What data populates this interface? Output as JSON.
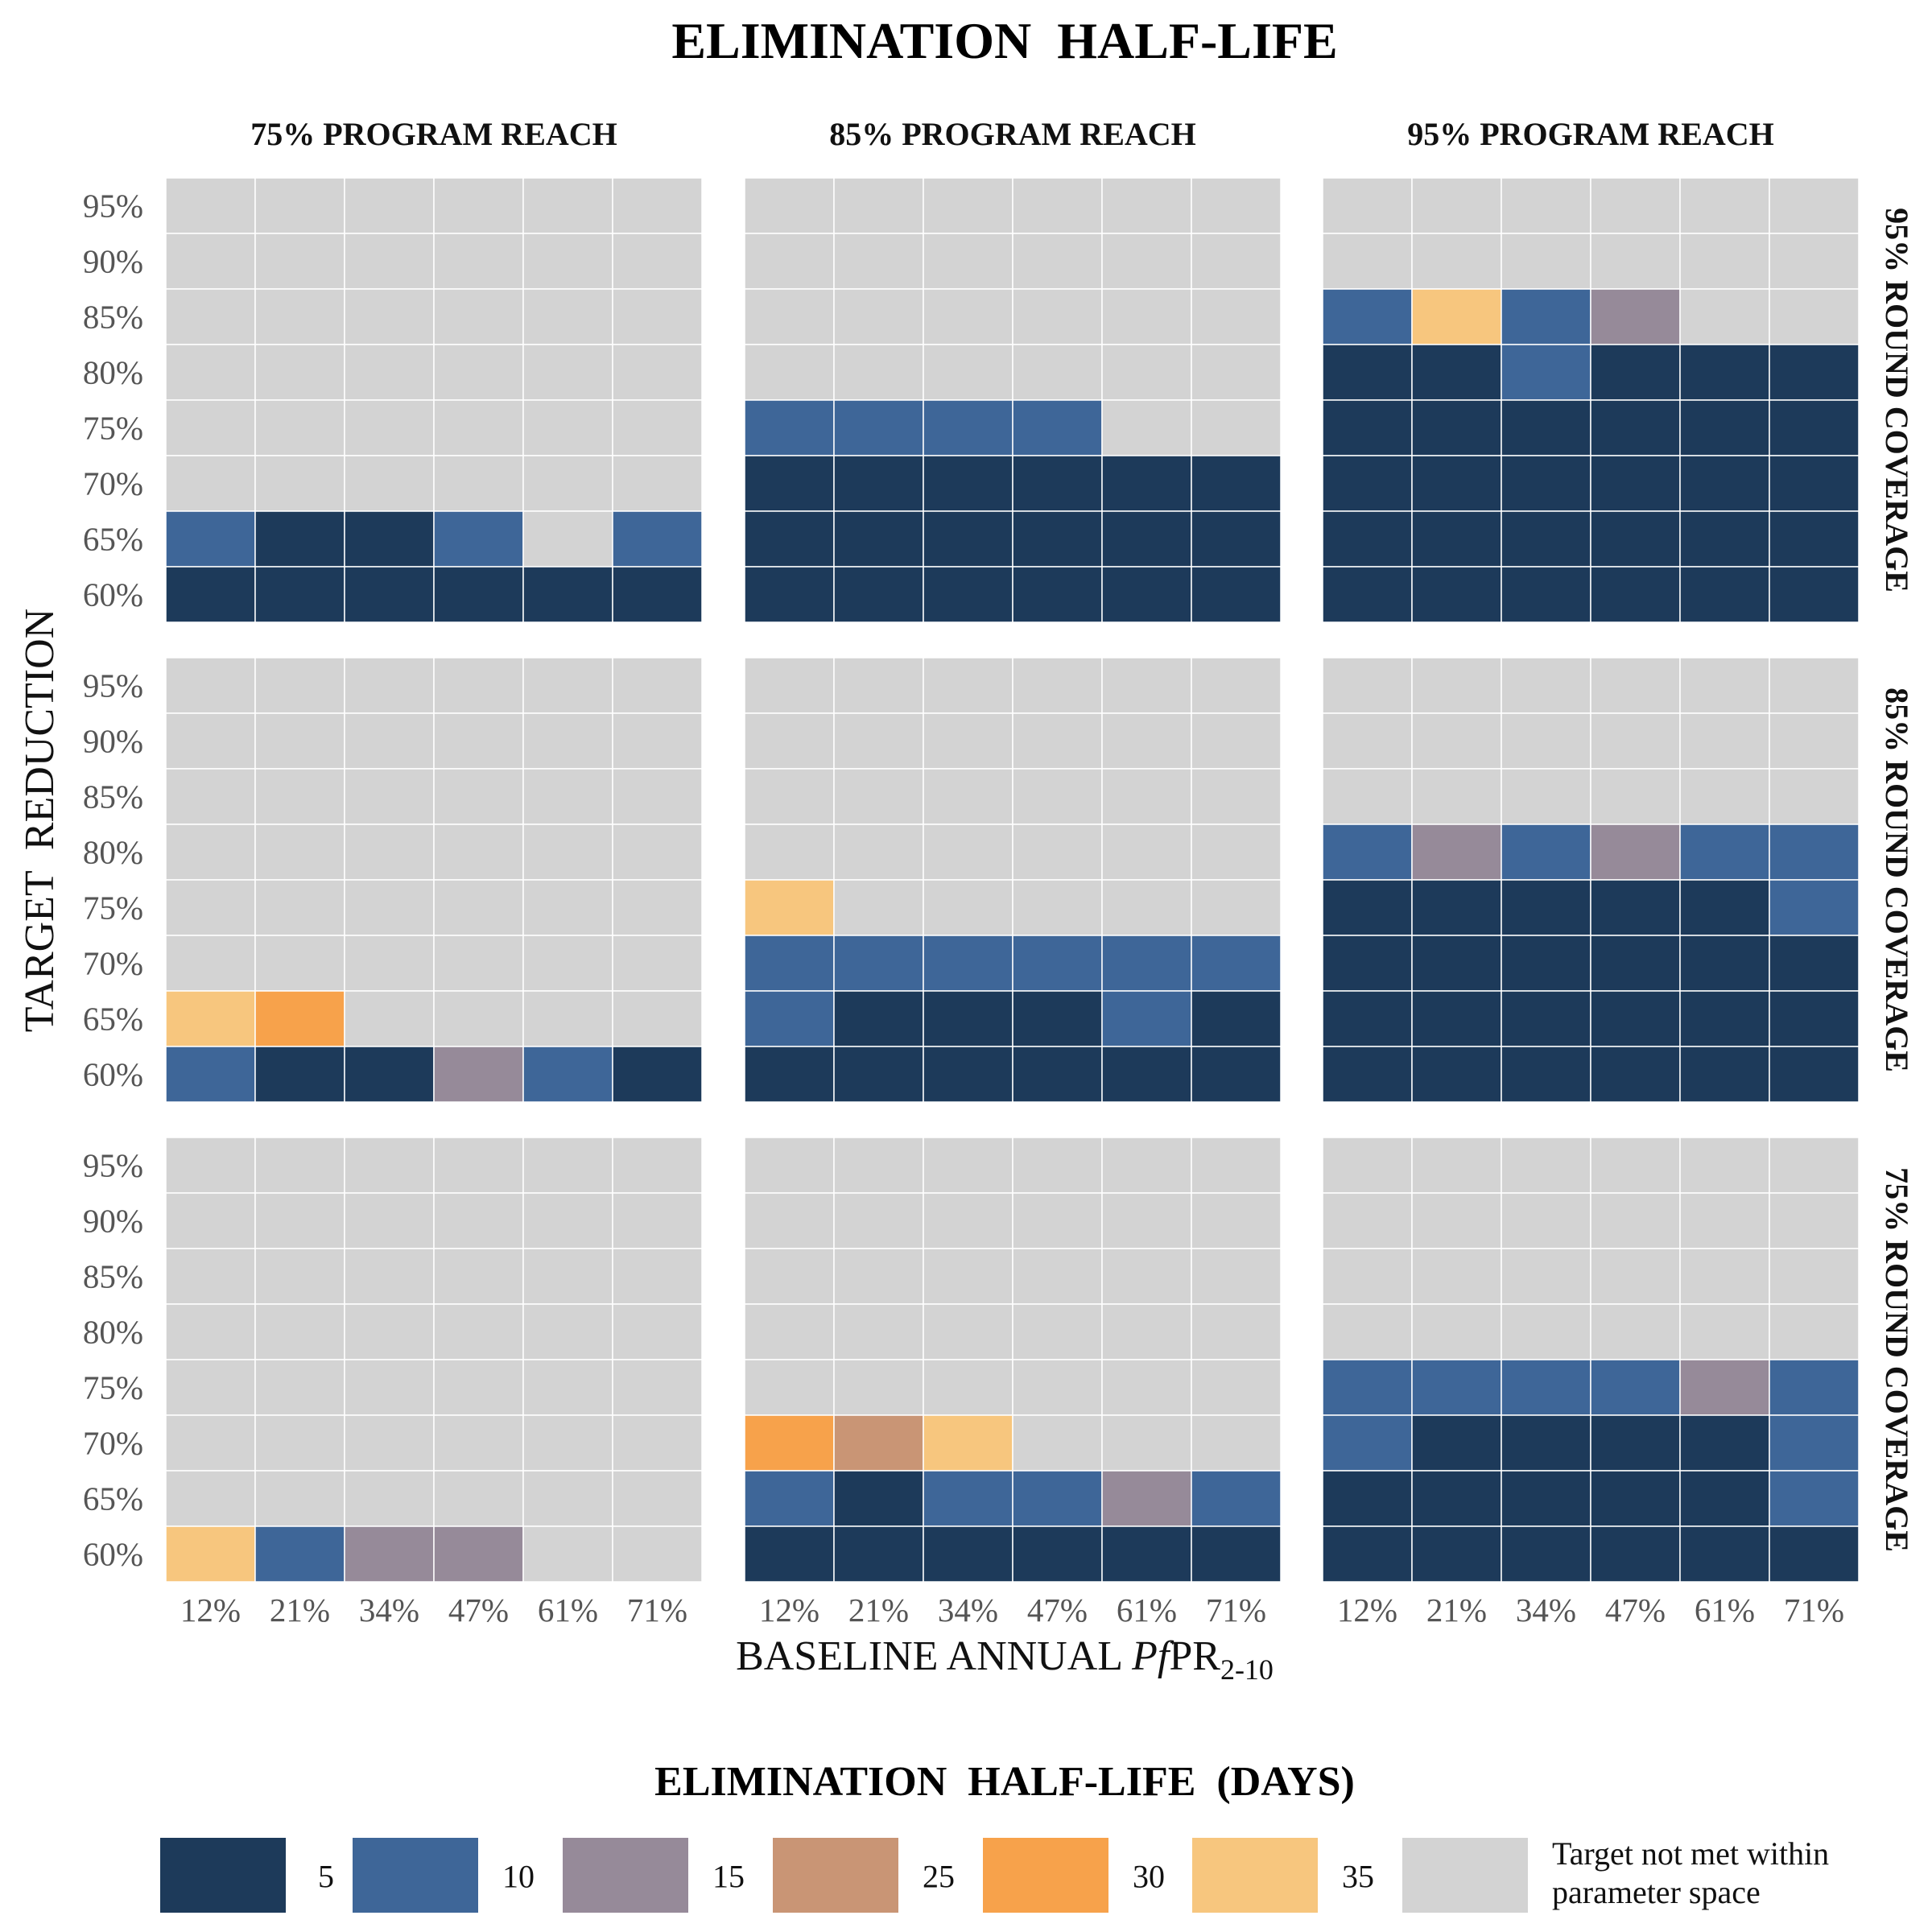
{
  "chart_data": {
    "type": "heatmap",
    "title": "ELIMINATION  HALF-LIFE",
    "xlabel": "BASELINE ANNUAL PfPR2-10",
    "xlabel_parts": {
      "pre": "BASELINE ANNUAL ",
      "italic": "Pf",
      "mid": "PR",
      "sub": "2-10"
    },
    "ylabel": "TARGET  REDUCTION",
    "x_categories": [
      "12%",
      "21%",
      "34%",
      "47%",
      "61%",
      "71%"
    ],
    "y_categories": [
      "95%",
      "90%",
      "85%",
      "80%",
      "75%",
      "70%",
      "65%",
      "60%"
    ],
    "column_facets": [
      "75% PROGRAM REACH",
      "85% PROGRAM REACH",
      "95% PROGRAM REACH"
    ],
    "row_facets": [
      "95% ROUND COVERAGE",
      "85% ROUND COVERAGE",
      "75% ROUND COVERAGE"
    ],
    "legend": {
      "title": "ELIMINATION  HALF-LIFE  (DAYS)",
      "entries": [
        {
          "key": "5",
          "label": "5",
          "color": "#1d3a5a"
        },
        {
          "key": "10",
          "label": "10",
          "color": "#3e6698"
        },
        {
          "key": "15",
          "label": "15",
          "color": "#968a99"
        },
        {
          "key": "25",
          "label": "25",
          "color": "#c99575"
        },
        {
          "key": "30",
          "label": "30",
          "color": "#f7a24b"
        },
        {
          "key": "35",
          "label": "35",
          "color": "#f7c67e"
        },
        {
          "key": "na",
          "label": "Target not met within parameter space",
          "color": "#d3d3d3"
        }
      ],
      "na_label_lines": [
        "Target not met within",
        "parameter space"
      ]
    },
    "grid_lines": true,
    "note": "Each panel matrix: rows follow y_categories (95% top to 60% bottom), columns follow x_categories; null = target not met within parameter space.",
    "panels": [
      {
        "row_facet": "95% ROUND COVERAGE",
        "column_facet": "75% PROGRAM REACH",
        "values": [
          [
            null,
            null,
            null,
            null,
            null,
            null
          ],
          [
            null,
            null,
            null,
            null,
            null,
            null
          ],
          [
            null,
            null,
            null,
            null,
            null,
            null
          ],
          [
            null,
            null,
            null,
            null,
            null,
            null
          ],
          [
            null,
            null,
            null,
            null,
            null,
            null
          ],
          [
            null,
            null,
            null,
            null,
            null,
            null
          ],
          [
            10,
            5,
            5,
            10,
            null,
            10
          ],
          [
            5,
            5,
            5,
            5,
            5,
            5
          ]
        ]
      },
      {
        "row_facet": "95% ROUND COVERAGE",
        "column_facet": "85% PROGRAM REACH",
        "values": [
          [
            null,
            null,
            null,
            null,
            null,
            null
          ],
          [
            null,
            null,
            null,
            null,
            null,
            null
          ],
          [
            null,
            null,
            null,
            null,
            null,
            null
          ],
          [
            null,
            null,
            null,
            null,
            null,
            null
          ],
          [
            10,
            10,
            10,
            10,
            null,
            null
          ],
          [
            5,
            5,
            5,
            5,
            5,
            5
          ],
          [
            5,
            5,
            5,
            5,
            5,
            5
          ],
          [
            5,
            5,
            5,
            5,
            5,
            5
          ]
        ]
      },
      {
        "row_facet": "95% ROUND COVERAGE",
        "column_facet": "95% PROGRAM REACH",
        "values": [
          [
            null,
            null,
            null,
            null,
            null,
            null
          ],
          [
            null,
            null,
            null,
            null,
            null,
            null
          ],
          [
            10,
            35,
            10,
            15,
            null,
            null
          ],
          [
            5,
            5,
            10,
            5,
            5,
            5
          ],
          [
            5,
            5,
            5,
            5,
            5,
            5
          ],
          [
            5,
            5,
            5,
            5,
            5,
            5
          ],
          [
            5,
            5,
            5,
            5,
            5,
            5
          ],
          [
            5,
            5,
            5,
            5,
            5,
            5
          ]
        ]
      },
      {
        "row_facet": "85% ROUND COVERAGE",
        "column_facet": "75% PROGRAM REACH",
        "values": [
          [
            null,
            null,
            null,
            null,
            null,
            null
          ],
          [
            null,
            null,
            null,
            null,
            null,
            null
          ],
          [
            null,
            null,
            null,
            null,
            null,
            null
          ],
          [
            null,
            null,
            null,
            null,
            null,
            null
          ],
          [
            null,
            null,
            null,
            null,
            null,
            null
          ],
          [
            null,
            null,
            null,
            null,
            null,
            null
          ],
          [
            35,
            30,
            null,
            null,
            null,
            null
          ],
          [
            10,
            5,
            5,
            15,
            10,
            5
          ]
        ]
      },
      {
        "row_facet": "85% ROUND COVERAGE",
        "column_facet": "85% PROGRAM REACH",
        "values": [
          [
            null,
            null,
            null,
            null,
            null,
            null
          ],
          [
            null,
            null,
            null,
            null,
            null,
            null
          ],
          [
            null,
            null,
            null,
            null,
            null,
            null
          ],
          [
            null,
            null,
            null,
            null,
            null,
            null
          ],
          [
            35,
            null,
            null,
            null,
            null,
            null
          ],
          [
            10,
            10,
            10,
            10,
            10,
            10
          ],
          [
            10,
            5,
            5,
            5,
            10,
            5
          ],
          [
            5,
            5,
            5,
            5,
            5,
            5
          ]
        ]
      },
      {
        "row_facet": "85% ROUND COVERAGE",
        "column_facet": "95% PROGRAM REACH",
        "values": [
          [
            null,
            null,
            null,
            null,
            null,
            null
          ],
          [
            null,
            null,
            null,
            null,
            null,
            null
          ],
          [
            null,
            null,
            null,
            null,
            null,
            null
          ],
          [
            10,
            15,
            10,
            15,
            10,
            10
          ],
          [
            5,
            5,
            5,
            5,
            5,
            10
          ],
          [
            5,
            5,
            5,
            5,
            5,
            5
          ],
          [
            5,
            5,
            5,
            5,
            5,
            5
          ],
          [
            5,
            5,
            5,
            5,
            5,
            5
          ]
        ]
      },
      {
        "row_facet": "75% ROUND COVERAGE",
        "column_facet": "75% PROGRAM REACH",
        "values": [
          [
            null,
            null,
            null,
            null,
            null,
            null
          ],
          [
            null,
            null,
            null,
            null,
            null,
            null
          ],
          [
            null,
            null,
            null,
            null,
            null,
            null
          ],
          [
            null,
            null,
            null,
            null,
            null,
            null
          ],
          [
            null,
            null,
            null,
            null,
            null,
            null
          ],
          [
            null,
            null,
            null,
            null,
            null,
            null
          ],
          [
            null,
            null,
            null,
            null,
            null,
            null
          ],
          [
            35,
            10,
            15,
            15,
            null,
            null
          ]
        ]
      },
      {
        "row_facet": "75% ROUND COVERAGE",
        "column_facet": "85% PROGRAM REACH",
        "values": [
          [
            null,
            null,
            null,
            null,
            null,
            null
          ],
          [
            null,
            null,
            null,
            null,
            null,
            null
          ],
          [
            null,
            null,
            null,
            null,
            null,
            null
          ],
          [
            null,
            null,
            null,
            null,
            null,
            null
          ],
          [
            null,
            null,
            null,
            null,
            null,
            null
          ],
          [
            30,
            25,
            35,
            null,
            null,
            null
          ],
          [
            10,
            5,
            10,
            10,
            15,
            10
          ],
          [
            5,
            5,
            5,
            5,
            5,
            5
          ]
        ]
      },
      {
        "row_facet": "75% ROUND COVERAGE",
        "column_facet": "95% PROGRAM REACH",
        "values": [
          [
            null,
            null,
            null,
            null,
            null,
            null
          ],
          [
            null,
            null,
            null,
            null,
            null,
            null
          ],
          [
            null,
            null,
            null,
            null,
            null,
            null
          ],
          [
            null,
            null,
            null,
            null,
            null,
            null
          ],
          [
            10,
            10,
            10,
            10,
            15,
            10
          ],
          [
            10,
            5,
            5,
            5,
            5,
            10
          ],
          [
            5,
            5,
            5,
            5,
            5,
            10
          ],
          [
            5,
            5,
            5,
            5,
            5,
            5
          ]
        ]
      }
    ]
  }
}
